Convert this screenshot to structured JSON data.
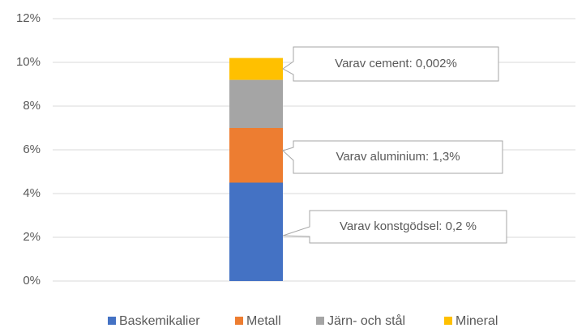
{
  "chart_data": {
    "type": "stacked_bar",
    "categories": [
      null
    ],
    "series": [
      {
        "name": "Baskemikalier",
        "color": "#4472c4",
        "values": [
          4.5
        ]
      },
      {
        "name": "Metall",
        "color": "#ed7d31",
        "values": [
          2.5
        ]
      },
      {
        "name": "Järn- och stål",
        "color": "#a5a5a5",
        "values": [
          2.2
        ]
      },
      {
        "name": "Mineral",
        "color": "#ffc000",
        "values": [
          1.0
        ]
      }
    ],
    "ylim": [
      0,
      12
    ],
    "yticks": [
      {
        "value": 0,
        "label": "0%"
      },
      {
        "value": 2,
        "label": "2%"
      },
      {
        "value": 4,
        "label": "4%"
      },
      {
        "value": 6,
        "label": "6%"
      },
      {
        "value": 8,
        "label": "8%"
      },
      {
        "value": 10,
        "label": "10%"
      },
      {
        "value": 12,
        "label": "12%"
      }
    ],
    "grid": true,
    "legend": "bottom",
    "annotations": [
      "Varav cement: 0,002%",
      "Varav aluminium: 1,3%",
      "Varav konstgödsel: 0,2 %"
    ]
  }
}
